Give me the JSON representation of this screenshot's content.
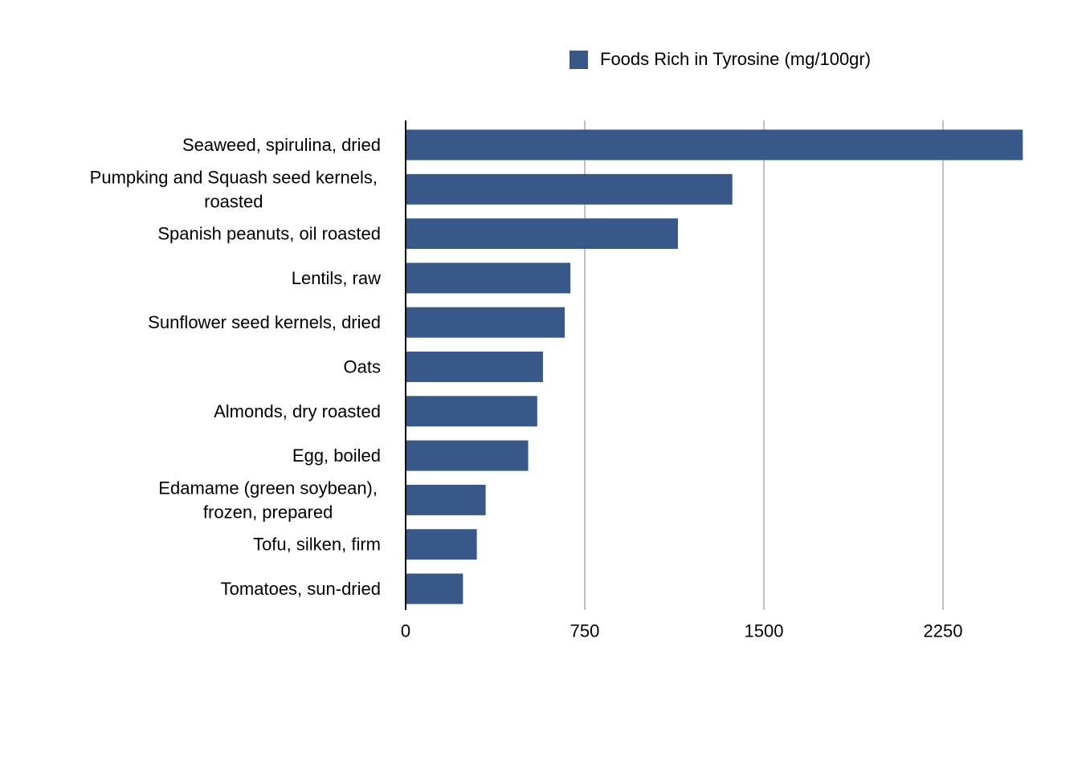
{
  "chart_data": {
    "type": "bar",
    "orientation": "horizontal",
    "title": "",
    "xlabel": "",
    "ylabel": "",
    "categories": [
      [
        "Seaweed, spirulina, dried"
      ],
      [
        "Pumpking and Squash seed kernels,",
        "roasted"
      ],
      [
        "Spanish peanuts, oil roasted"
      ],
      [
        "Lentils, raw"
      ],
      [
        "Sunflower seed kernels, dried"
      ],
      [
        "Oats"
      ],
      [
        "Almonds, dry roasted"
      ],
      [
        "Egg, boiled"
      ],
      [
        "Edamame (green soybean),",
        "frozen, prepared"
      ],
      [
        "Tofu, silken, firm"
      ],
      [
        "Tomatoes, sun-dried"
      ]
    ],
    "series": [
      {
        "name": "Foods Rich in Tyrosine (mg/100gr)",
        "color": "#375888",
        "values": [
          2584,
          1368,
          1140,
          690,
          666,
          575,
          551,
          513,
          335,
          298,
          240
        ]
      }
    ],
    "xlim": [
      0,
      2600
    ],
    "xticks": [
      "0",
      "750",
      "1500",
      "2250"
    ],
    "xtick_values": [
      0,
      750,
      1500,
      2250
    ],
    "grid": "vertical",
    "legend_position": "top"
  }
}
